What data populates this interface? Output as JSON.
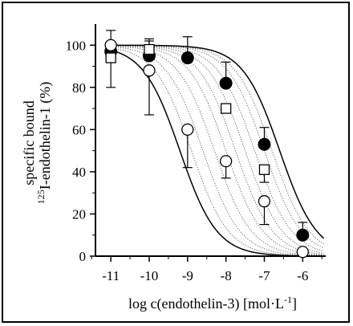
{
  "chart_data": {
    "type": "scatter",
    "title": "",
    "xlabel_main": "log c(endothelin-3) [mol·L",
    "xlabel_sup": "-1",
    "xlabel_tail": "]",
    "ylabel_line1": "specific bound",
    "ylabel_sup": "125",
    "ylabel_line2": "I-endothelin-1 (%)",
    "xlim": [
      -11.4,
      -5.4
    ],
    "ylim": [
      0,
      110
    ],
    "x_ticks": [
      -11,
      -10,
      -9,
      -8,
      -7,
      -6
    ],
    "x_tick_labels": [
      "-11",
      "-10",
      "-9",
      "-8",
      "-7",
      "-6"
    ],
    "y_ticks": [
      0,
      20,
      40,
      60,
      80,
      100
    ],
    "y_tick_labels": [
      "0",
      "20",
      "40",
      "60",
      "80",
      "100"
    ],
    "grid": false,
    "series": [
      {
        "marker": "filled-circle",
        "color": "#000000",
        "x": [
          -11,
          -10,
          -9,
          -8,
          -7,
          -6
        ],
        "y": [
          97,
          95,
          94,
          82,
          53,
          10
        ],
        "err_up": [
          10,
          7,
          10,
          10,
          8,
          6
        ],
        "err_down": [
          17,
          0,
          0,
          0,
          0,
          0
        ]
      },
      {
        "marker": "open-square",
        "color": "#000000",
        "x": [
          -11,
          -10,
          -8,
          -7
        ],
        "y": [
          94,
          98,
          70,
          41
        ],
        "err_up": [
          0,
          5,
          0,
          0
        ],
        "err_down": [
          0,
          0,
          0,
          6
        ]
      },
      {
        "marker": "open-circle",
        "color": "#000000",
        "x": [
          -11,
          -10,
          -9,
          -8,
          -7,
          -6
        ],
        "y": [
          100,
          88,
          60,
          45,
          26,
          2
        ],
        "err_up": [
          0,
          0,
          0,
          0,
          0,
          0
        ],
        "err_down": [
          0,
          21,
          18,
          8,
          11,
          0
        ]
      }
    ],
    "fit_curves": {
      "solid_ic50_log": [
        -9.2,
        -6.6
      ],
      "dotted_ic50_log": [
        -8.9,
        -8.6,
        -8.3,
        -8.0,
        -7.75,
        -7.5,
        -7.25,
        -7.0,
        -6.8
      ],
      "hill": 0.9,
      "top": 100,
      "bottom": 0
    }
  }
}
